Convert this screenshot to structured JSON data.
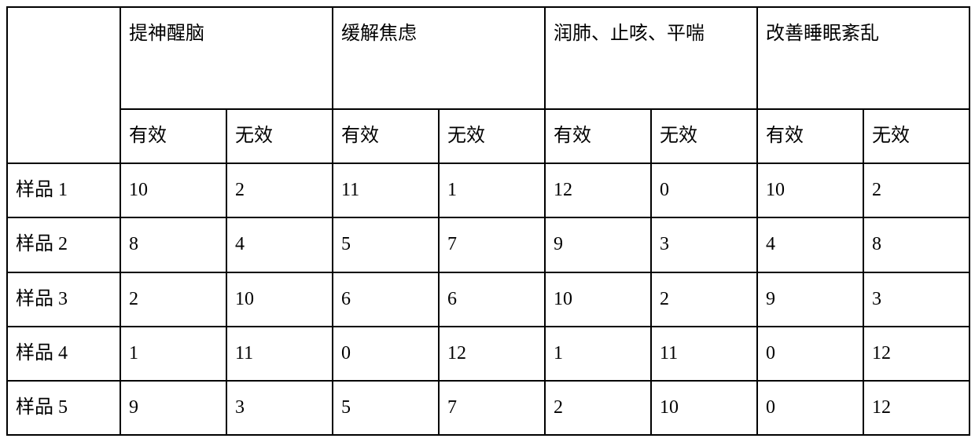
{
  "table": {
    "type": "table",
    "background_color": "#ffffff",
    "border_color": "#000000",
    "text_color": "#000000",
    "font_size_pt": 18,
    "groups": [
      {
        "label": "提神醒脑"
      },
      {
        "label": "缓解焦虑"
      },
      {
        "label": "润肺、止咳、平喘"
      },
      {
        "label": "改善睡眠紊乱"
      }
    ],
    "sub_headers": {
      "effective": "有效",
      "ineffective": "无效"
    },
    "rows": [
      {
        "label": "样品 1",
        "cells": [
          "10",
          "2",
          "11",
          "1",
          "12",
          "0",
          "10",
          "2"
        ]
      },
      {
        "label": "样品 2",
        "cells": [
          "8",
          "4",
          "5",
          "7",
          "9",
          "3",
          "4",
          "8"
        ]
      },
      {
        "label": "样品 3",
        "cells": [
          "2",
          "10",
          "6",
          "6",
          "10",
          "2",
          "9",
          "3"
        ]
      },
      {
        "label": "样品 4",
        "cells": [
          "1",
          "11",
          "0",
          "12",
          "1",
          "11",
          "0",
          "12"
        ]
      },
      {
        "label": "样品 5",
        "cells": [
          "9",
          "3",
          "5",
          "7",
          "2",
          "10",
          "0",
          "12"
        ]
      }
    ]
  }
}
